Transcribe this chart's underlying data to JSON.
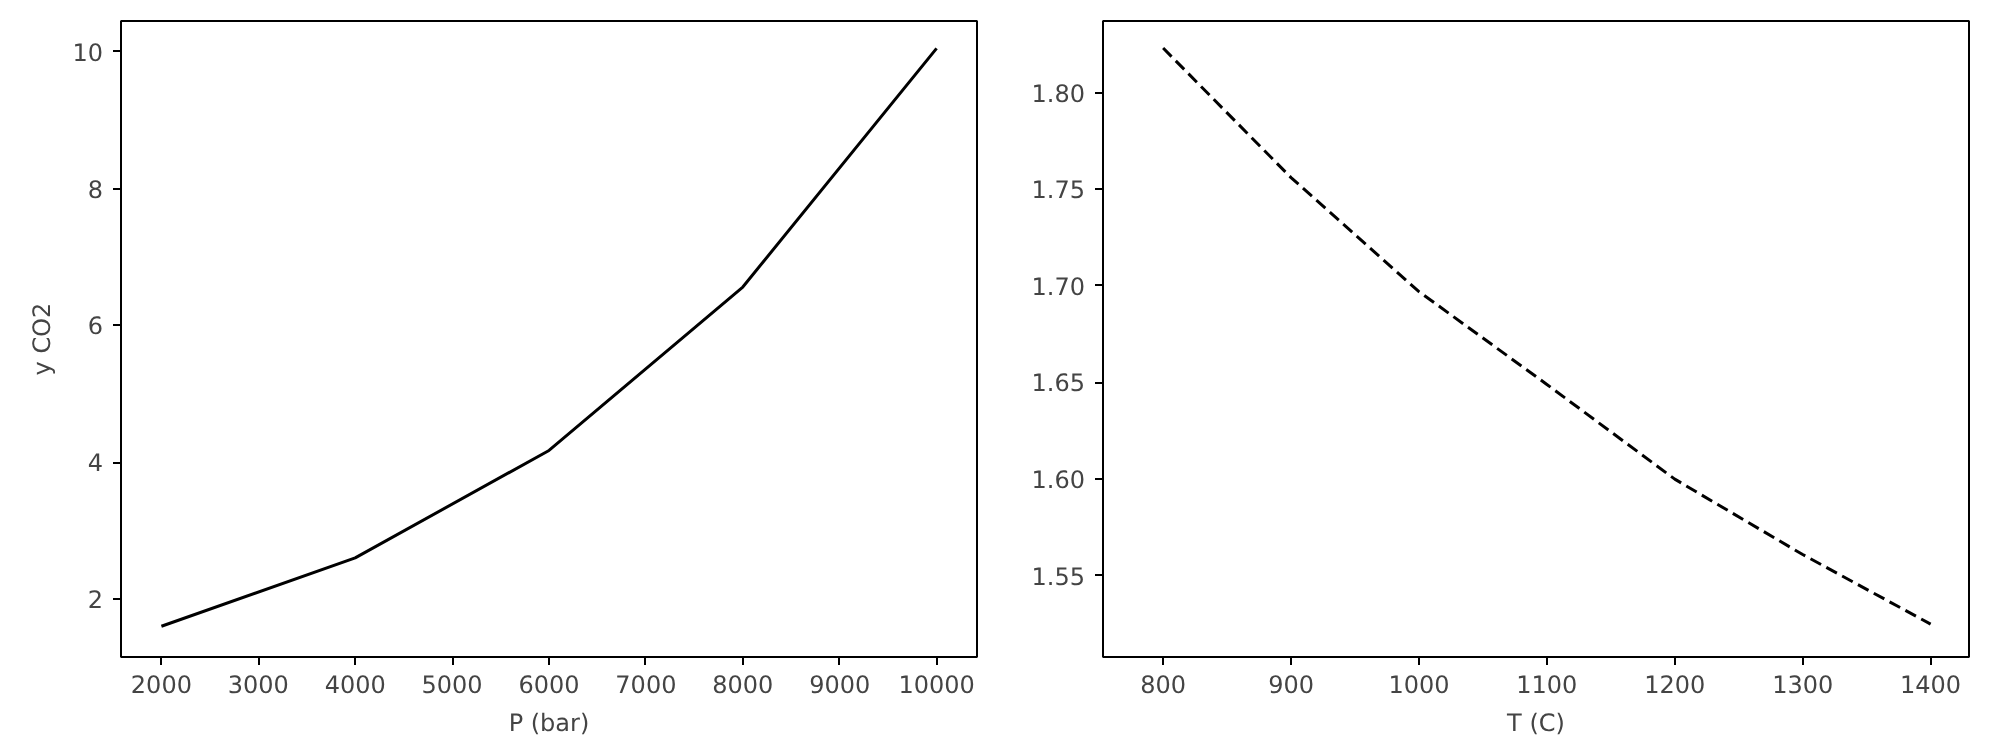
{
  "chart_data": [
    {
      "type": "line",
      "xlabel": "P (bar)",
      "ylabel": "y CO2",
      "x": [
        2000,
        4000,
        6000,
        8000,
        10000
      ],
      "series": [
        {
          "color": "#000000",
          "values": [
            1.6,
            2.6,
            4.17,
            6.56,
            10.05
          ]
        }
      ],
      "xlim": [
        1583,
        10417
      ],
      "ylim": [
        1.15,
        10.45
      ],
      "xticks": [
        2000,
        3000,
        4000,
        5000,
        6000,
        7000,
        8000,
        9000,
        10000
      ],
      "yticks": [
        2,
        4,
        6,
        8,
        10
      ],
      "line_style": "solid",
      "grid": false
    },
    {
      "type": "line",
      "xlabel": "T (C)",
      "x": [
        800,
        900,
        1000,
        1100,
        1200,
        1300,
        1400
      ],
      "series": [
        {
          "color": "#000000",
          "values": [
            1.823,
            1.756,
            1.697,
            1.649,
            1.6,
            1.561,
            1.525
          ]
        }
      ],
      "xlim": [
        753,
        1430
      ],
      "ylim": [
        1.508,
        1.837
      ],
      "xticks": [
        800,
        900,
        1000,
        1100,
        1200,
        1300,
        1400
      ],
      "yticks": [
        {
          "value": 1.55,
          "label": "1.55"
        },
        {
          "value": 1.6,
          "label": "1.60"
        },
        {
          "value": 1.65,
          "label": "1.65"
        },
        {
          "value": 1.7,
          "label": "1.70"
        },
        {
          "value": 1.75,
          "label": "1.75"
        },
        {
          "value": 1.8,
          "label": "1.80"
        }
      ],
      "line_style": "dashed",
      "grid": false
    }
  ]
}
